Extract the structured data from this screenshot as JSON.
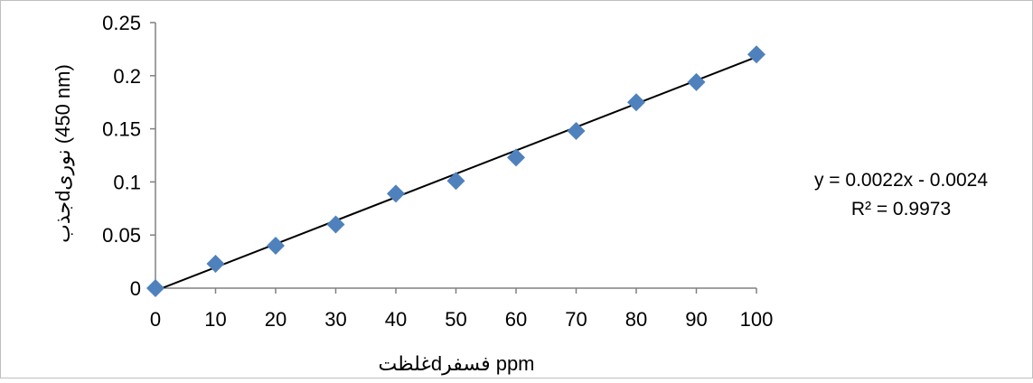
{
  "chart_data": {
    "type": "scatter",
    "title": "",
    "xlabel": "غلظتdفسفر ppm",
    "ylabel": "جذبdنوری (450 nm)",
    "x": [
      0,
      10,
      20,
      30,
      40,
      50,
      60,
      70,
      80,
      90,
      100
    ],
    "y": [
      0,
      0.023,
      0.04,
      0.06,
      0.089,
      0.101,
      0.123,
      0.148,
      0.175,
      0.194,
      0.22
    ],
    "xlim": [
      0,
      100
    ],
    "ylim": [
      0,
      0.25
    ],
    "x_ticks": [
      0,
      10,
      20,
      30,
      40,
      50,
      60,
      70,
      80,
      90,
      100
    ],
    "y_ticks": [
      "0",
      "0.05",
      "0.1",
      "0.15",
      "0.2",
      "0.25"
    ],
    "marker": "diamond",
    "marker_color": "#4f81bd",
    "trendline": {
      "type": "linear",
      "slope": 0.0022,
      "intercept": -0.0024,
      "color": "#000000",
      "equation": "y = 0.0022x - 0.0024",
      "r_squared": "R² = 0.9973"
    },
    "grid": false,
    "legend": "none"
  }
}
